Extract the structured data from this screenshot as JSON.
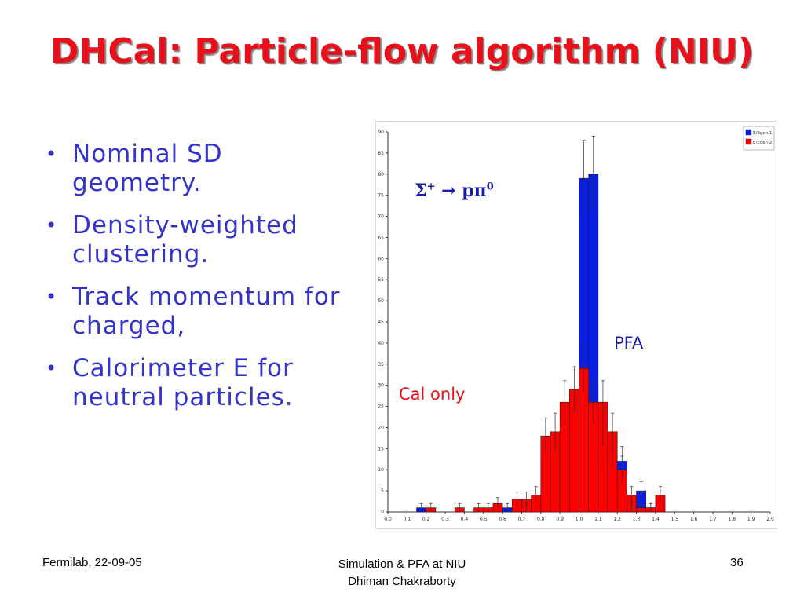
{
  "slide": {
    "title": "DHCal: Particle-flow algorithm (NIU)",
    "bullets": [
      "Nominal SD geometry.",
      "Density-weighted clustering.",
      "Track momentum for charged,",
      "Calorimeter E for neutral particles."
    ],
    "footer": {
      "left": "Fermilab, 22-09-05",
      "center_line1": "Simulation & PFA at NIU",
      "center_line2": "Dhiman Chakraborty",
      "page": "36"
    },
    "annotations": {
      "reaction_sigma": "Σ",
      "reaction_sup": "+",
      "reaction_arrow": "→",
      "reaction_product": "pπ",
      "reaction_product_sup": "0",
      "pfa": "PFA",
      "cal_only": "Cal only"
    }
  },
  "chart_data": {
    "type": "bar",
    "histogram": true,
    "bin_width": 0.05,
    "x_start": 0.0,
    "xlim": [
      0.0,
      2.0
    ],
    "ylim": [
      0,
      90
    ],
    "xticks": [
      "0.0",
      "0.1",
      "0.2",
      "0.3",
      "0.4",
      "0.5",
      "0.6",
      "0.7",
      "0.8",
      "0.9",
      "1.0",
      "1.1",
      "1.2",
      "1.3",
      "1.4",
      "1.5",
      "1.6",
      "1.7",
      "1.8",
      "1.9",
      "2.0"
    ],
    "yticks": [
      "0",
      "5",
      "10",
      "15",
      "20",
      "25",
      "30",
      "35",
      "40",
      "45",
      "50",
      "55",
      "60",
      "65",
      "70",
      "75",
      "80",
      "85",
      "90"
    ],
    "legend_position": "top-right",
    "series": [
      {
        "name": "E/Egen 1",
        "color": "#0a1fe6",
        "values": [
          0,
          0,
          0,
          1,
          0,
          0,
          0,
          0,
          0,
          0,
          0,
          0,
          1,
          0,
          1,
          0,
          0,
          0,
          0,
          0,
          79,
          80,
          20,
          14,
          12,
          1,
          5,
          1,
          0,
          0,
          0,
          0,
          0,
          0,
          0,
          0,
          0,
          0,
          0,
          0
        ],
        "errors": [
          0,
          0,
          0,
          1,
          0,
          0,
          0,
          0,
          0,
          0,
          0,
          0,
          1,
          0,
          1,
          0,
          0,
          0,
          0,
          0,
          9,
          9,
          4.5,
          3.7,
          3.5,
          1,
          2.2,
          1,
          0,
          0,
          0,
          0,
          0,
          0,
          0,
          0,
          0,
          0,
          0,
          0
        ]
      },
      {
        "name": "E/Egen 2",
        "color": "#ff0000",
        "values": [
          0,
          0,
          0,
          0,
          1,
          0,
          0,
          1,
          0,
          1,
          1,
          2,
          0,
          3,
          3,
          4,
          18,
          19,
          26,
          29,
          34,
          26,
          26,
          19,
          10,
          4,
          1,
          1,
          4,
          0,
          0,
          0,
          0,
          0,
          0,
          0,
          0,
          0,
          0,
          0
        ],
        "errors": [
          0,
          0,
          0,
          0,
          1,
          0,
          0,
          1,
          0,
          1,
          1,
          1.4,
          0,
          1.7,
          1.7,
          2,
          4.2,
          4.4,
          5.1,
          5.4,
          5.8,
          5.1,
          5.1,
          4.4,
          3.2,
          2,
          1,
          1,
          2,
          0,
          0,
          0,
          0,
          0,
          0,
          0,
          0,
          0,
          0,
          0
        ]
      }
    ]
  }
}
